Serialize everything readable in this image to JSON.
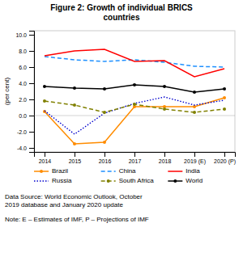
{
  "chart_data": {
    "type": "line",
    "title": "Figure 2: Growth of individual BRICS\ncountries",
    "ylabel": "(per cent)",
    "categories": [
      "2014",
      "2015",
      "2016",
      "2017",
      "2018",
      "2019 (E)",
      "2020 (P)"
    ],
    "series": [
      {
        "name": "Brazil",
        "color": "#FF8C00",
        "marker": "circle",
        "line_style": "solid",
        "values": [
          0.5,
          -3.5,
          -3.3,
          1.1,
          1.1,
          1.1,
          2.2
        ]
      },
      {
        "name": "China",
        "color": "#1E90FF",
        "line_style": "dashed",
        "values": [
          7.3,
          6.9,
          6.7,
          6.9,
          6.6,
          6.1,
          6.0
        ]
      },
      {
        "name": "India",
        "color": "#FF0000",
        "line_style": "solid",
        "values": [
          7.4,
          8.0,
          8.2,
          6.7,
          6.8,
          4.8,
          5.8
        ]
      },
      {
        "name": "Russia",
        "color": "#0000CD",
        "line_style": "dotted",
        "values": [
          0.6,
          -2.3,
          0.3,
          1.5,
          2.3,
          1.3,
          1.9
        ]
      },
      {
        "name": "South Africa",
        "color": "#808000",
        "marker": "circle",
        "line_style": "dashed",
        "values": [
          1.8,
          1.3,
          0.4,
          1.4,
          0.8,
          0.4,
          0.8
        ]
      },
      {
        "name": "World",
        "color": "#000000",
        "marker": "circle",
        "line_style": "solid",
        "values": [
          3.6,
          3.4,
          3.3,
          3.8,
          3.6,
          2.9,
          3.3
        ]
      }
    ],
    "ylim": [
      -4.5,
      10.5
    ],
    "yticks": [
      {
        "value": -4.0,
        "label": "-4.0"
      },
      {
        "value": -2.0,
        "label": "-2.0"
      },
      {
        "value": 0.0,
        "label": "0.0"
      },
      {
        "value": 2.0,
        "label": "2.0"
      },
      {
        "value": 4.0,
        "label": "4.0"
      },
      {
        "value": 6.0,
        "label": "6.0"
      },
      {
        "value": 8.0,
        "label": "8.0"
      },
      {
        "value": 10.0,
        "label": "10.0"
      }
    ],
    "grid": false,
    "legend": "bottom",
    "annotations": [
      "Data Source: World Economic Outlook, October\n2019 database and January 2020 update",
      "Note: E – Estimates of IMF, P – Projections of IMF"
    ]
  }
}
